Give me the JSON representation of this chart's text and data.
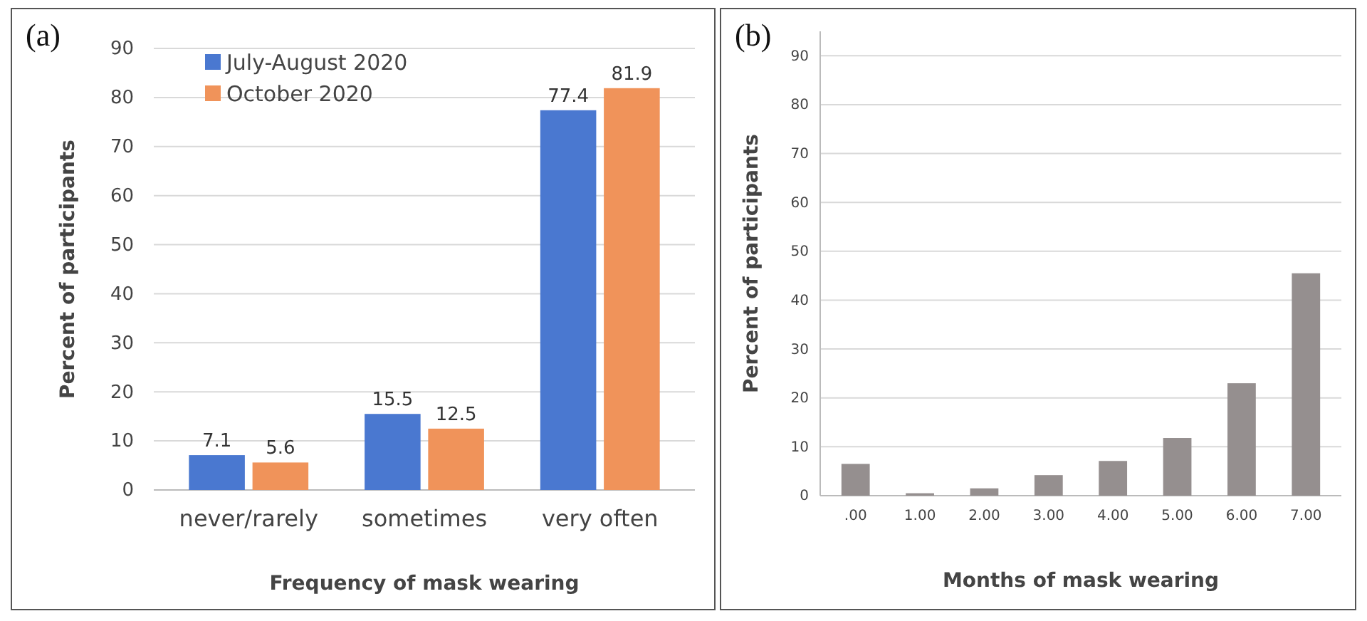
{
  "chart_data": [
    {
      "type": "bar",
      "annotations": [
        "(a)"
      ],
      "xlabel": "Frequency of mask wearing",
      "ylabel": "Percent of participants",
      "categories": [
        "never/rarely",
        "sometimes",
        "very often"
      ],
      "series": [
        {
          "name": "July-August 2020",
          "color": "#4a78d0",
          "values": [
            7.1,
            15.5,
            77.4
          ]
        },
        {
          "name": "October 2020",
          "color": "#f0935a",
          "values": [
            5.6,
            12.5,
            81.9
          ]
        }
      ],
      "ylim": [
        0,
        90
      ],
      "yticks": [
        0,
        10,
        20,
        30,
        40,
        50,
        60,
        70,
        80,
        90
      ],
      "grid": "y",
      "legend": "top left",
      "data_labels": true
    },
    {
      "type": "bar",
      "annotations": [
        "(b)"
      ],
      "xlabel": "Months of mask wearing",
      "ylabel": "Percent of participants",
      "categories": [
        ".00",
        "1.00",
        "2.00",
        "3.00",
        "4.00",
        "5.00",
        "6.00",
        "7.00"
      ],
      "series": [
        {
          "color": "#958f8f",
          "values": [
            6.5,
            0.5,
            1.5,
            4.2,
            7.1,
            11.8,
            23,
            45.5
          ]
        }
      ],
      "ylim": [
        0,
        95
      ],
      "yticks": [
        0,
        10,
        20,
        30,
        40,
        50,
        60,
        70,
        80,
        90
      ],
      "grid": "y"
    }
  ]
}
